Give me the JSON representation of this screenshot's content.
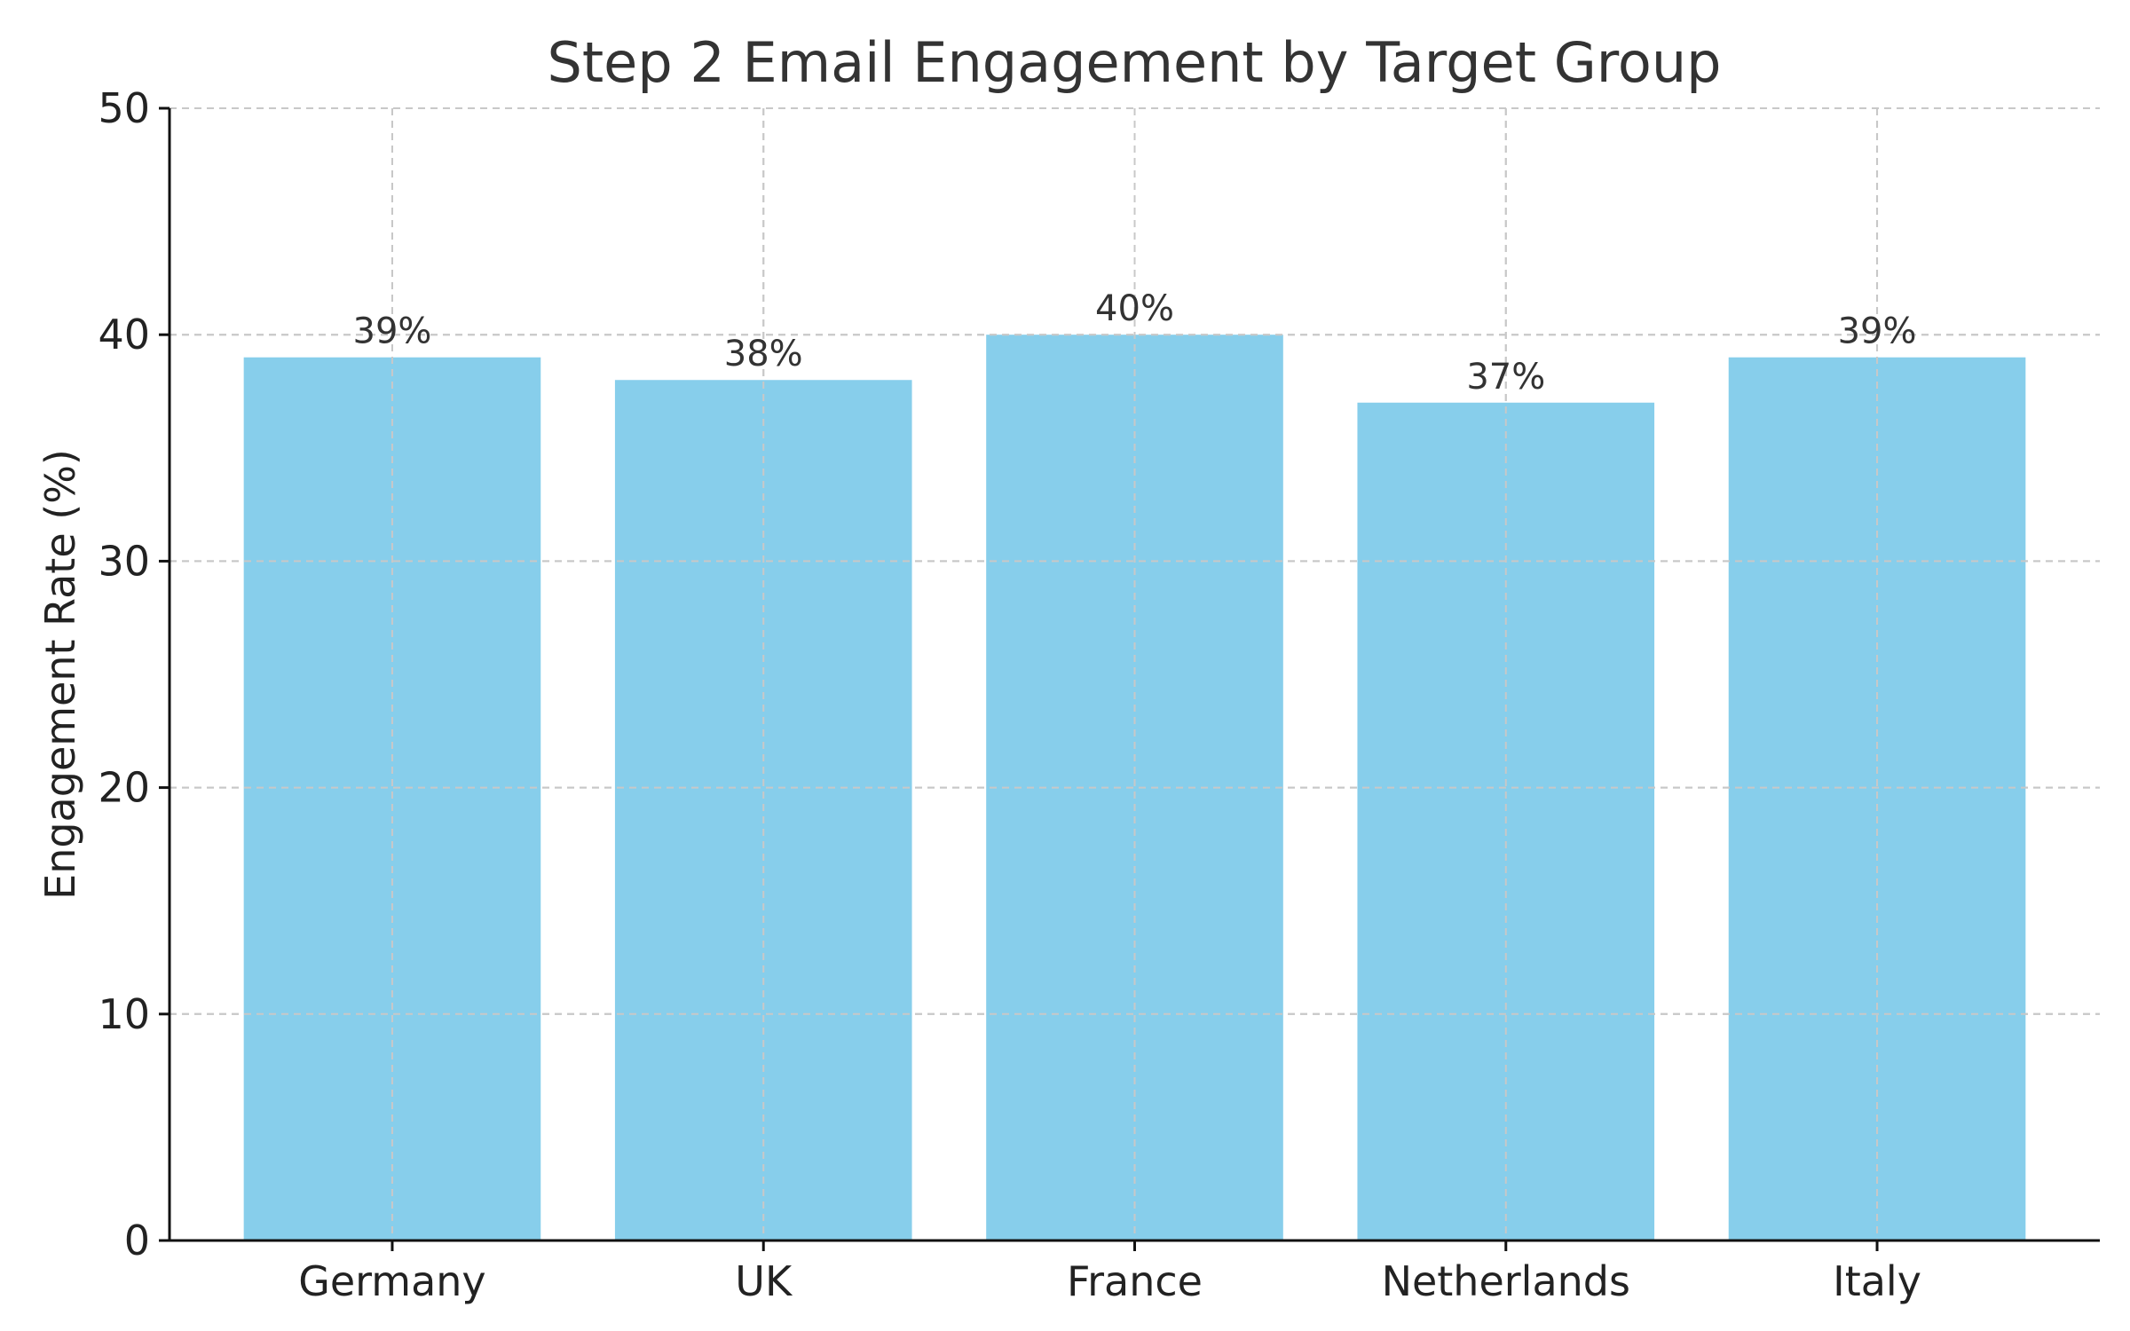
{
  "chart_data": {
    "type": "bar",
    "title": "Step 2 Email Engagement by Target Group",
    "xlabel": "",
    "ylabel": "Engagement Rate (%)",
    "categories": [
      "Germany",
      "UK",
      "France",
      "Netherlands",
      "Italy"
    ],
    "values": [
      39,
      38,
      40,
      37,
      39
    ],
    "data_labels": [
      "39%",
      "38%",
      "40%",
      "37%",
      "39%"
    ],
    "ylim": [
      0,
      50
    ],
    "yticks": [
      0,
      10,
      20,
      30,
      40,
      50
    ],
    "ytick_labels": [
      "0",
      "10",
      "20",
      "30",
      "40",
      "50"
    ],
    "grid": true,
    "legend": "none",
    "colors": {
      "bar": "#87ceeb",
      "grid": "#c8c8c8",
      "axis": "#111111",
      "text": "#222222"
    }
  }
}
